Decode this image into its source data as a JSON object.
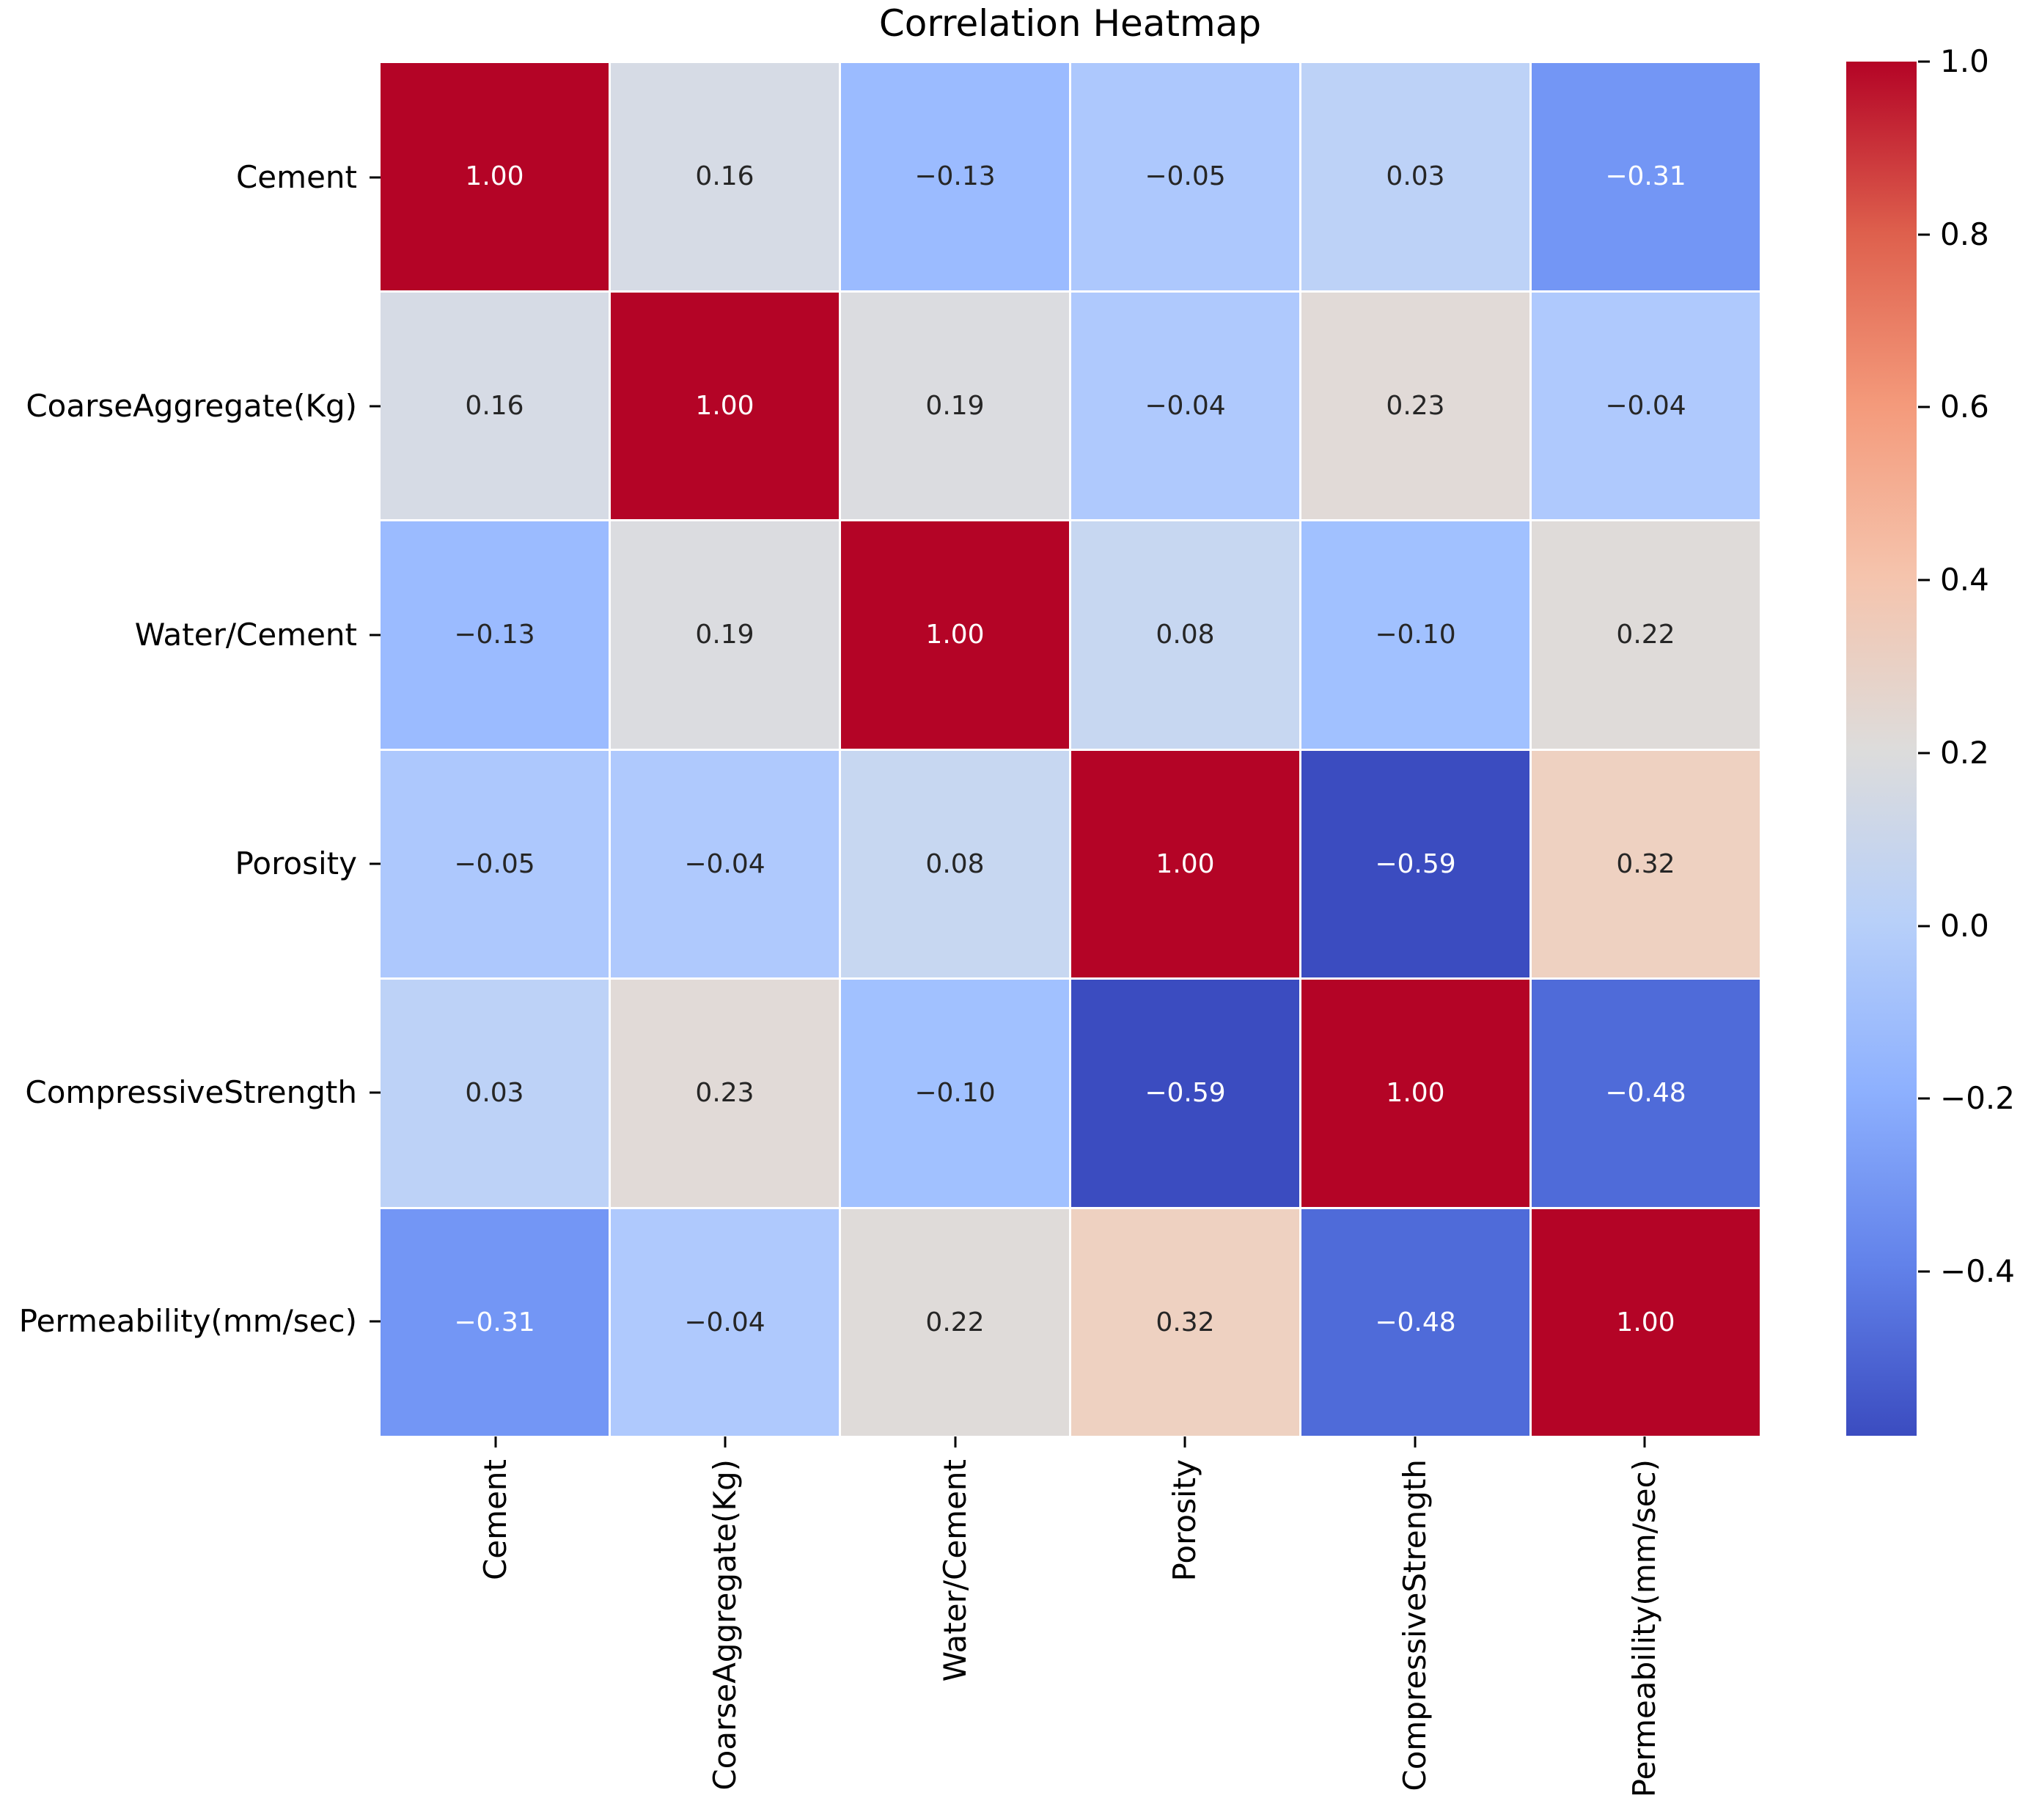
{
  "title": "Correlation Heatmap",
  "chart_data": {
    "type": "heatmap",
    "title": "Correlation Heatmap",
    "colormap": "coolwarm",
    "vmin": -0.59,
    "vmax": 1.0,
    "grid": "off",
    "categories": [
      "Cement",
      "CoarseAggregate(Kg)",
      "Water/Cement",
      "Porosity",
      "CompressiveStrength",
      "Permeability(mm/sec)"
    ],
    "matrix": [
      [
        1.0,
        0.16,
        -0.13,
        -0.05,
        0.03,
        -0.31
      ],
      [
        0.16,
        1.0,
        0.19,
        -0.04,
        0.23,
        -0.04
      ],
      [
        -0.13,
        0.19,
        1.0,
        0.08,
        -0.1,
        0.22
      ],
      [
        -0.05,
        -0.04,
        0.08,
        1.0,
        -0.59,
        0.32
      ],
      [
        0.03,
        0.23,
        -0.1,
        -0.59,
        1.0,
        -0.48
      ],
      [
        -0.31,
        -0.04,
        0.22,
        0.32,
        -0.48,
        1.0
      ]
    ],
    "annotations": [
      [
        "1.00",
        "0.16",
        "−0.13",
        "−0.05",
        "0.03",
        "−0.31"
      ],
      [
        "0.16",
        "1.00",
        "0.19",
        "−0.04",
        "0.23",
        "−0.04"
      ],
      [
        "−0.13",
        "0.19",
        "1.00",
        "0.08",
        "−0.10",
        "0.22"
      ],
      [
        "−0.05",
        "−0.04",
        "0.08",
        "1.00",
        "−0.59",
        "0.32"
      ],
      [
        "0.03",
        "0.23",
        "−0.10",
        "−0.59",
        "1.00",
        "−0.48"
      ],
      [
        "−0.31",
        "−0.04",
        "0.22",
        "0.32",
        "−0.48",
        "1.00"
      ]
    ],
    "cell_colors": [
      [
        "#b40426",
        "#d6dbe5",
        "#9bbbff",
        "#adc8fd",
        "#bdd2f7",
        "#7396f5"
      ],
      [
        "#d6dbe5",
        "#b40426",
        "#dbdce0",
        "#afc9fd",
        "#e1dad7",
        "#afc9fd"
      ],
      [
        "#9bbbff",
        "#dbdce0",
        "#b40426",
        "#c7d7f1",
        "#a1c1ff",
        "#dfdbd9"
      ],
      [
        "#adc8fd",
        "#afc9fd",
        "#c7d7f1",
        "#b40426",
        "#3b4cc0",
        "#eed1c1"
      ],
      [
        "#bdd2f7",
        "#e1dad7",
        "#a1c1ff",
        "#3b4cc0",
        "#b40426",
        "#4f6bd9"
      ],
      [
        "#7396f5",
        "#afc9fd",
        "#dfdbd9",
        "#eed1c1",
        "#4f6bd9",
        "#b40426"
      ]
    ],
    "text_colors": [
      [
        "#ffffff",
        "#262626",
        "#262626",
        "#262626",
        "#262626",
        "#ffffff"
      ],
      [
        "#262626",
        "#ffffff",
        "#262626",
        "#262626",
        "#262626",
        "#262626"
      ],
      [
        "#262626",
        "#262626",
        "#ffffff",
        "#262626",
        "#262626",
        "#262626"
      ],
      [
        "#262626",
        "#262626",
        "#262626",
        "#ffffff",
        "#ffffff",
        "#262626"
      ],
      [
        "#262626",
        "#262626",
        "#262626",
        "#ffffff",
        "#ffffff",
        "#ffffff"
      ],
      [
        "#ffffff",
        "#262626",
        "#262626",
        "#262626",
        "#ffffff",
        "#ffffff"
      ]
    ],
    "colorbar": {
      "position": "right",
      "tick_labels": [
        "1.0",
        "0.8",
        "0.6",
        "0.4",
        "0.2",
        "0.0",
        "−0.2",
        "−0.4"
      ],
      "tick_values": [
        1.0,
        0.8,
        0.6,
        0.4,
        0.2,
        0.0,
        -0.2,
        -0.4
      ],
      "gradient_stops_top_to_bottom": [
        "#b40426",
        "#de604d",
        "#f49a7b",
        "#f5c4ad",
        "#dddcdb",
        "#b8d0f9",
        "#8db0fe",
        "#6282ea",
        "#3b4cc0"
      ]
    }
  }
}
